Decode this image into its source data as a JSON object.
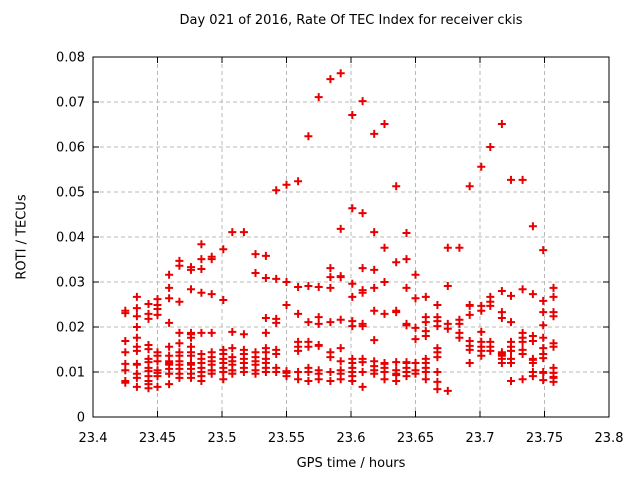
{
  "chart_data": {
    "type": "scatter",
    "title": "Day 021 of 2016, Rate Of TEC Index for receiver ckis",
    "xlabel": "GPS time / hours",
    "ylabel": "ROTI / TECUs",
    "xlim": [
      23.4,
      23.8
    ],
    "ylim": [
      0,
      0.08
    ],
    "grid": true,
    "legend": "none",
    "marker": {
      "shape": "plus",
      "color": "#e80000",
      "size": 9
    },
    "grid_color": "#b8b8b8",
    "border_color": "#000000",
    "x_ticks": {
      "values": [
        23.4,
        23.45,
        23.5,
        23.55,
        23.6,
        23.65,
        23.7,
        23.75,
        23.8
      ],
      "labels": [
        "23.4",
        "23.45",
        "23.5",
        "23.55",
        "23.6",
        "23.65",
        "23.7",
        "23.75",
        "23.8"
      ]
    },
    "y_ticks": {
      "values": [
        0,
        0.01,
        0.02,
        0.03,
        0.04,
        0.05,
        0.06,
        0.07,
        0.08
      ],
      "labels": [
        "0",
        "0.01",
        "0.02",
        "0.03",
        "0.04",
        "0.05",
        "0.06",
        "0.07",
        "0.08"
      ]
    },
    "series": [
      {
        "x": 23.425,
        "y": [
          0.0236,
          0.0231,
          0.0169,
          0.0144,
          0.0118,
          0.0104,
          0.008,
          0.0076
        ]
      },
      {
        "x": 23.434,
        "y": [
          0.0267,
          0.0242,
          0.0224,
          0.02,
          0.0176,
          0.0156,
          0.0147,
          0.0118,
          0.0116,
          0.0096,
          0.0087,
          0.0067
        ]
      },
      {
        "x": 23.443,
        "y": [
          0.0251,
          0.0229,
          0.0218,
          0.016,
          0.0151,
          0.0129,
          0.0122,
          0.0109,
          0.0102,
          0.0091,
          0.008,
          0.0073,
          0.0064
        ]
      },
      {
        "x": 23.45,
        "y": [
          0.0262,
          0.0249,
          0.024,
          0.0227,
          0.0144,
          0.0136,
          0.0124,
          0.0104,
          0.0098,
          0.0091,
          0.0067
        ]
      },
      {
        "x": 23.459,
        "y": [
          0.0316,
          0.0287,
          0.0264,
          0.0209,
          0.0156,
          0.0136,
          0.0124,
          0.012,
          0.0116,
          0.0107,
          0.0096,
          0.0073
        ]
      },
      {
        "x": 23.467,
        "y": [
          0.0347,
          0.0336,
          0.0256,
          0.0187,
          0.0164,
          0.0144,
          0.0136,
          0.0124,
          0.0116,
          0.0107,
          0.0096,
          0.0087
        ]
      },
      {
        "x": 23.476,
        "y": [
          0.0333,
          0.0327,
          0.0284,
          0.0187,
          0.0184,
          0.0176,
          0.0156,
          0.0144,
          0.0136,
          0.012,
          0.0116,
          0.0107,
          0.0096,
          0.0087
        ]
      },
      {
        "x": 23.484,
        "y": [
          0.0384,
          0.0351,
          0.0329,
          0.0276,
          0.0187,
          0.014,
          0.0129,
          0.012,
          0.0109,
          0.01,
          0.0091,
          0.008
        ]
      },
      {
        "x": 23.492,
        "y": [
          0.0356,
          0.0351,
          0.0273,
          0.0187,
          0.0144,
          0.0133,
          0.0124,
          0.0116,
          0.0104,
          0.0096
        ]
      },
      {
        "x": 23.501,
        "y": [
          0.0373,
          0.026,
          0.0149,
          0.014,
          0.0129,
          0.012,
          0.0109,
          0.01,
          0.0084
        ]
      },
      {
        "x": 23.508,
        "y": [
          0.0411,
          0.0189,
          0.0153,
          0.0133,
          0.0124,
          0.0116,
          0.0104,
          0.0096
        ]
      },
      {
        "x": 23.517,
        "y": [
          0.0411,
          0.0184,
          0.0149,
          0.014,
          0.0129,
          0.012,
          0.0109,
          0.01
        ]
      },
      {
        "x": 23.526,
        "y": [
          0.0362,
          0.032,
          0.0144,
          0.0133,
          0.0124,
          0.0116,
          0.0104,
          0.0096
        ]
      },
      {
        "x": 23.534,
        "y": [
          0.0358,
          0.0309,
          0.022,
          0.0187,
          0.0153,
          0.0144,
          0.0129,
          0.012,
          0.0109,
          0.01
        ]
      },
      {
        "x": 23.542,
        "y": [
          0.0504,
          0.0307,
          0.0218,
          0.0209,
          0.0149,
          0.014,
          0.0109,
          0.01
        ]
      },
      {
        "x": 23.55,
        "y": [
          0.0516,
          0.03,
          0.0249,
          0.0102,
          0.0098,
          0.0091
        ]
      },
      {
        "x": 23.559,
        "y": [
          0.0524,
          0.0289,
          0.0229,
          0.0167,
          0.0156,
          0.0147,
          0.01,
          0.0084
        ]
      },
      {
        "x": 23.567,
        "y": [
          0.0624,
          0.0291,
          0.0211,
          0.0167,
          0.0156,
          0.0109,
          0.01,
          0.008
        ]
      },
      {
        "x": 23.575,
        "y": [
          0.0711,
          0.0289,
          0.0222,
          0.0207,
          0.016,
          0.0158,
          0.0104,
          0.0096,
          0.0084
        ]
      },
      {
        "x": 23.584,
        "y": [
          0.0751,
          0.0331,
          0.0311,
          0.0287,
          0.0211,
          0.0144,
          0.0133,
          0.01,
          0.008
        ]
      },
      {
        "x": 23.592,
        "y": [
          0.0764,
          0.0418,
          0.0313,
          0.0311,
          0.0216,
          0.0153,
          0.0124,
          0.0104,
          0.0096,
          0.0084
        ]
      },
      {
        "x": 23.601,
        "y": [
          0.0671,
          0.0464,
          0.0296,
          0.0267,
          0.0213,
          0.0202,
          0.0129,
          0.012,
          0.0109,
          0.01,
          0.0091,
          0.008
        ]
      },
      {
        "x": 23.609,
        "y": [
          0.0702,
          0.0453,
          0.0331,
          0.0282,
          0.0276,
          0.0207,
          0.0202,
          0.0129,
          0.0122,
          0.01,
          0.0067
        ]
      },
      {
        "x": 23.618,
        "y": [
          0.0629,
          0.0411,
          0.0327,
          0.0287,
          0.0236,
          0.0171,
          0.0124,
          0.0113,
          0.0104,
          0.0096
        ]
      },
      {
        "x": 23.626,
        "y": [
          0.0651,
          0.0376,
          0.03,
          0.0229,
          0.012,
          0.0118,
          0.0109,
          0.01,
          0.0084
        ]
      },
      {
        "x": 23.635,
        "y": [
          0.0513,
          0.0344,
          0.0236,
          0.0233,
          0.0122,
          0.0104,
          0.0096,
          0.0093,
          0.008
        ]
      },
      {
        "x": 23.643,
        "y": [
          0.0409,
          0.0351,
          0.0287,
          0.0207,
          0.0204,
          0.0122,
          0.012,
          0.0109,
          0.01,
          0.0091
        ]
      },
      {
        "x": 23.65,
        "y": [
          0.0316,
          0.0264,
          0.0198,
          0.0173,
          0.012,
          0.0104,
          0.0096
        ]
      },
      {
        "x": 23.658,
        "y": [
          0.0267,
          0.0222,
          0.0211,
          0.0191,
          0.018,
          0.0129,
          0.012,
          0.0109,
          0.01,
          0.0084
        ]
      },
      {
        "x": 23.667,
        "y": [
          0.0249,
          0.0222,
          0.0213,
          0.0202,
          0.0153,
          0.0144,
          0.0133,
          0.01,
          0.0078,
          0.0062
        ]
      },
      {
        "x": 23.675,
        "y": [
          0.0376,
          0.0291,
          0.0207,
          0.0196,
          0.0058
        ]
      },
      {
        "x": 23.684,
        "y": [
          0.0376,
          0.0216,
          0.0207,
          0.0187,
          0.0176
        ]
      },
      {
        "x": 23.692,
        "y": [
          0.0513,
          0.0249,
          0.0247,
          0.0227,
          0.0169,
          0.0158,
          0.0149,
          0.012
        ]
      },
      {
        "x": 23.701,
        "y": [
          0.0556,
          0.0247,
          0.0236,
          0.0189,
          0.0167,
          0.0156,
          0.0147,
          0.0136
        ]
      },
      {
        "x": 23.708,
        "y": [
          0.06,
          0.0267,
          0.0256,
          0.0247,
          0.0167,
          0.0156,
          0.0147
        ]
      },
      {
        "x": 23.717,
        "y": [
          0.0651,
          0.028,
          0.0233,
          0.022,
          0.0144,
          0.014,
          0.0136,
          0.0129,
          0.012
        ]
      },
      {
        "x": 23.724,
        "y": [
          0.0527,
          0.0269,
          0.0211,
          0.0167,
          0.0156,
          0.0147,
          0.0129,
          0.012,
          0.008
        ]
      },
      {
        "x": 23.733,
        "y": [
          0.0527,
          0.0284,
          0.0187,
          0.0176,
          0.0167,
          0.0149,
          0.014,
          0.0084
        ]
      },
      {
        "x": 23.741,
        "y": [
          0.0424,
          0.0273,
          0.018,
          0.0169,
          0.0129,
          0.0127,
          0.012,
          0.01,
          0.0091
        ]
      },
      {
        "x": 23.749,
        "y": [
          0.0371,
          0.0258,
          0.0233,
          0.0204,
          0.0176,
          0.0153,
          0.014,
          0.0131,
          0.01,
          0.0098,
          0.0082
        ]
      },
      {
        "x": 23.757,
        "y": [
          0.0287,
          0.0267,
          0.0233,
          0.0224,
          0.0164,
          0.0156,
          0.0109,
          0.0098,
          0.0089,
          0.0087,
          0.0078
        ]
      }
    ]
  }
}
